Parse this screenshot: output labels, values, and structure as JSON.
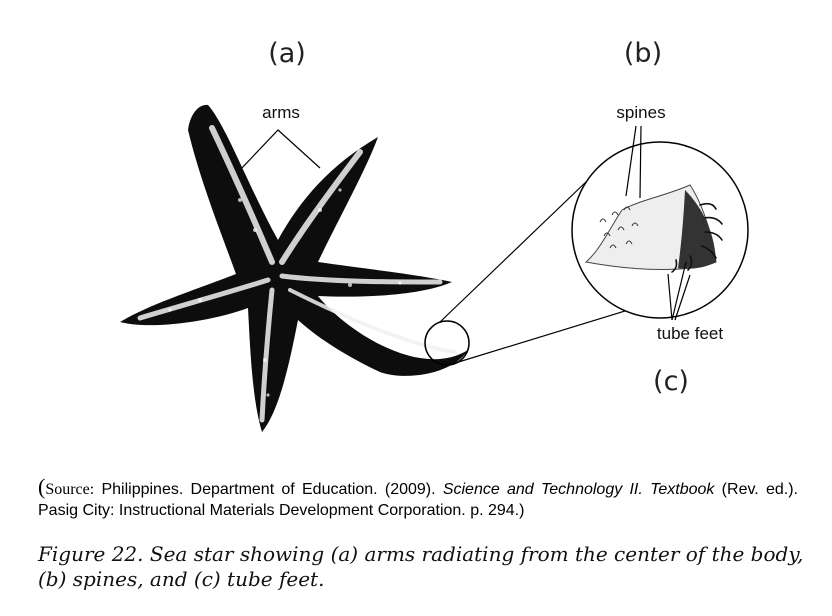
{
  "figure": {
    "panel_a": "(a)",
    "panel_b": "(b)",
    "panel_c": "(c)",
    "labels": {
      "arms": "arms",
      "spines": "spines",
      "tube_feet": "tube feet"
    }
  },
  "source": {
    "open_paren": "(",
    "lead": "Source:",
    "part1": " Philippines. Department of Education. (2009). ",
    "title_italic": "Science and Technology II. Textbook",
    "part2": " (Rev. ed.).  Pasig City: Instructional Materials Development Corporation. p. 294.)"
  },
  "caption": "Figure 22. Sea star showing (a) arms radiating from the center of the body, (b) spines, and (c) tube feet."
}
